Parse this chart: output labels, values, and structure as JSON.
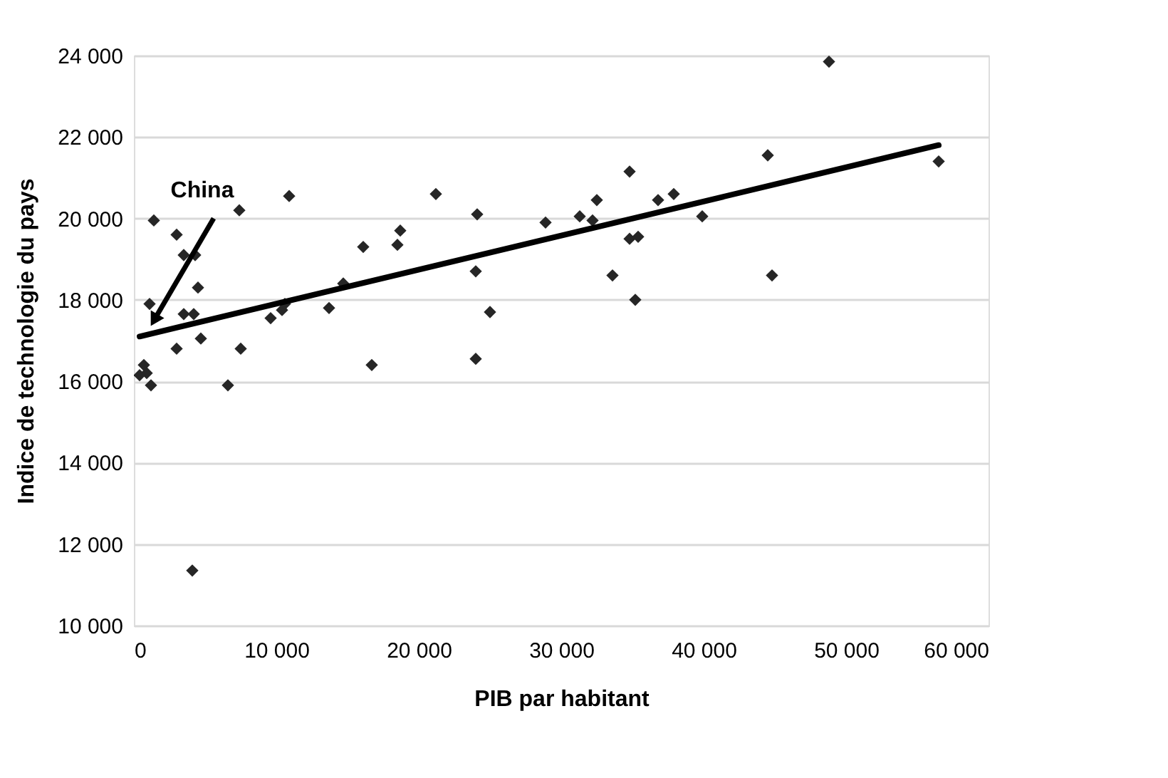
{
  "chart_data": {
    "type": "scatter",
    "xlabel": "PIB par habitant",
    "ylabel": "Indice de technologie du pays",
    "grid": "y",
    "xlim": [
      0,
      60000
    ],
    "ylim": [
      10000,
      24000
    ],
    "xticks": [
      0,
      {
        "value": 10000,
        "label": "10 000"
      },
      {
        "value": 20000,
        "label": "20 000"
      },
      {
        "value": 30000,
        "label": "30 000"
      },
      {
        "value": 40000,
        "label": "40 000"
      },
      {
        "value": 50000,
        "label": "50 000"
      },
      {
        "value": 60000,
        "label": "60 000"
      }
    ],
    "yticks": [
      {
        "value": 10000,
        "label": "10 000"
      },
      {
        "value": 12000,
        "label": "12 000"
      },
      {
        "value": 14000,
        "label": "14 000"
      },
      {
        "value": 16000,
        "label": "16 000"
      },
      {
        "value": 18000,
        "label": "18 000"
      },
      {
        "value": 20000,
        "label": "20 000"
      },
      {
        "value": 22000,
        "label": "22 000"
      },
      {
        "value": 24000,
        "label": "24 000"
      }
    ],
    "annotations": [
      {
        "text": "China",
        "x": 1500,
        "y": 17550
      }
    ],
    "series": [
      {
        "color": "#262626",
        "marker": "diamond",
        "x": [
          1400,
          700,
          900,
          400,
          1200,
          1100,
          3000,
          3000,
          3500,
          4300,
          4500,
          3500,
          4200,
          4700,
          6600,
          7400,
          7500,
          4100,
          10900,
          9600,
          10400,
          10600,
          13700,
          14700,
          16100,
          16700,
          18500,
          18700,
          21200,
          24100,
          24000,
          24000,
          25000,
          28900,
          31300,
          32200,
          32500,
          33600,
          34800,
          34800,
          35400,
          35200,
          36800,
          37900,
          39900,
          44500,
          44800,
          48800,
          56500
        ],
        "values": [
          19950,
          16400,
          16200,
          16150,
          15900,
          17900,
          16800,
          19600,
          19100,
          19100,
          18300,
          17650,
          17650,
          17050,
          15900,
          20200,
          16800,
          11350,
          20550,
          17550,
          17750,
          17900,
          17800,
          18400,
          19300,
          16400,
          19350,
          19700,
          20600,
          20100,
          18700,
          16550,
          17700,
          19900,
          20050,
          19950,
          20450,
          18600,
          21150,
          19500,
          19550,
          18000,
          20450,
          20600,
          20050,
          21550,
          18600,
          23850,
          21400
        ]
      },
      {
        "type": "line",
        "color": "#000000",
        "marker": "none",
        "line_style": "solid",
        "x": [
          400,
          56500
        ],
        "values": [
          17100,
          21800
        ]
      }
    ]
  }
}
